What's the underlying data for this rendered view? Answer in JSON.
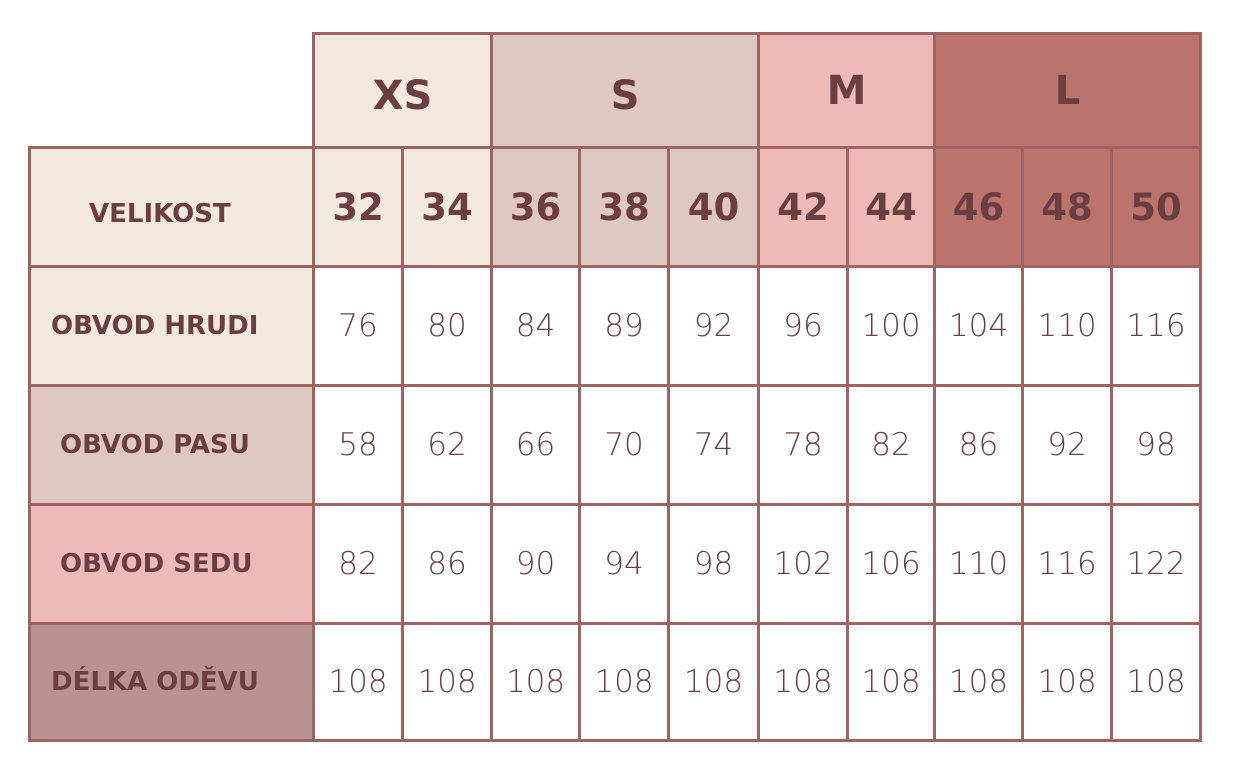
{
  "size_groups": [
    {
      "label": "XS",
      "span": 2,
      "color": "#f3e8de"
    },
    {
      "label": "S",
      "span": 3,
      "color": "#dfc8c2"
    },
    {
      "label": "M",
      "span": 2,
      "color": "#eeb9b7"
    },
    {
      "label": "L",
      "span": 3,
      "color": "#bb746d"
    }
  ],
  "header_row": {
    "label": "VELIKOST",
    "sizes": [
      "32",
      "34",
      "36",
      "38",
      "40",
      "42",
      "44",
      "46",
      "48",
      "50"
    ]
  },
  "rows": [
    {
      "label": "OBVOD HRUDI",
      "color": "#f3e8de",
      "values": [
        "76",
        "80",
        "84",
        "89",
        "92",
        "96",
        "100",
        "104",
        "110",
        "116"
      ]
    },
    {
      "label": "OBVOD PASU",
      "color": "#dfc8c2",
      "values": [
        "58",
        "62",
        "66",
        "70",
        "74",
        "78",
        "82",
        "86",
        "92",
        "98"
      ]
    },
    {
      "label": "OBVOD SEDU",
      "color": "#eeb9b7",
      "values": [
        "82",
        "86",
        "90",
        "94",
        "98",
        "102",
        "106",
        "110",
        "116",
        "122"
      ]
    },
    {
      "label": "DÉLKA ODĚVU",
      "color": "#b99291",
      "values": [
        "108",
        "108",
        "108",
        "108",
        "108",
        "108",
        "108",
        "108",
        "108",
        "108"
      ]
    }
  ],
  "colors": {
    "border": "#9e6463",
    "text": "#6b3f42"
  }
}
